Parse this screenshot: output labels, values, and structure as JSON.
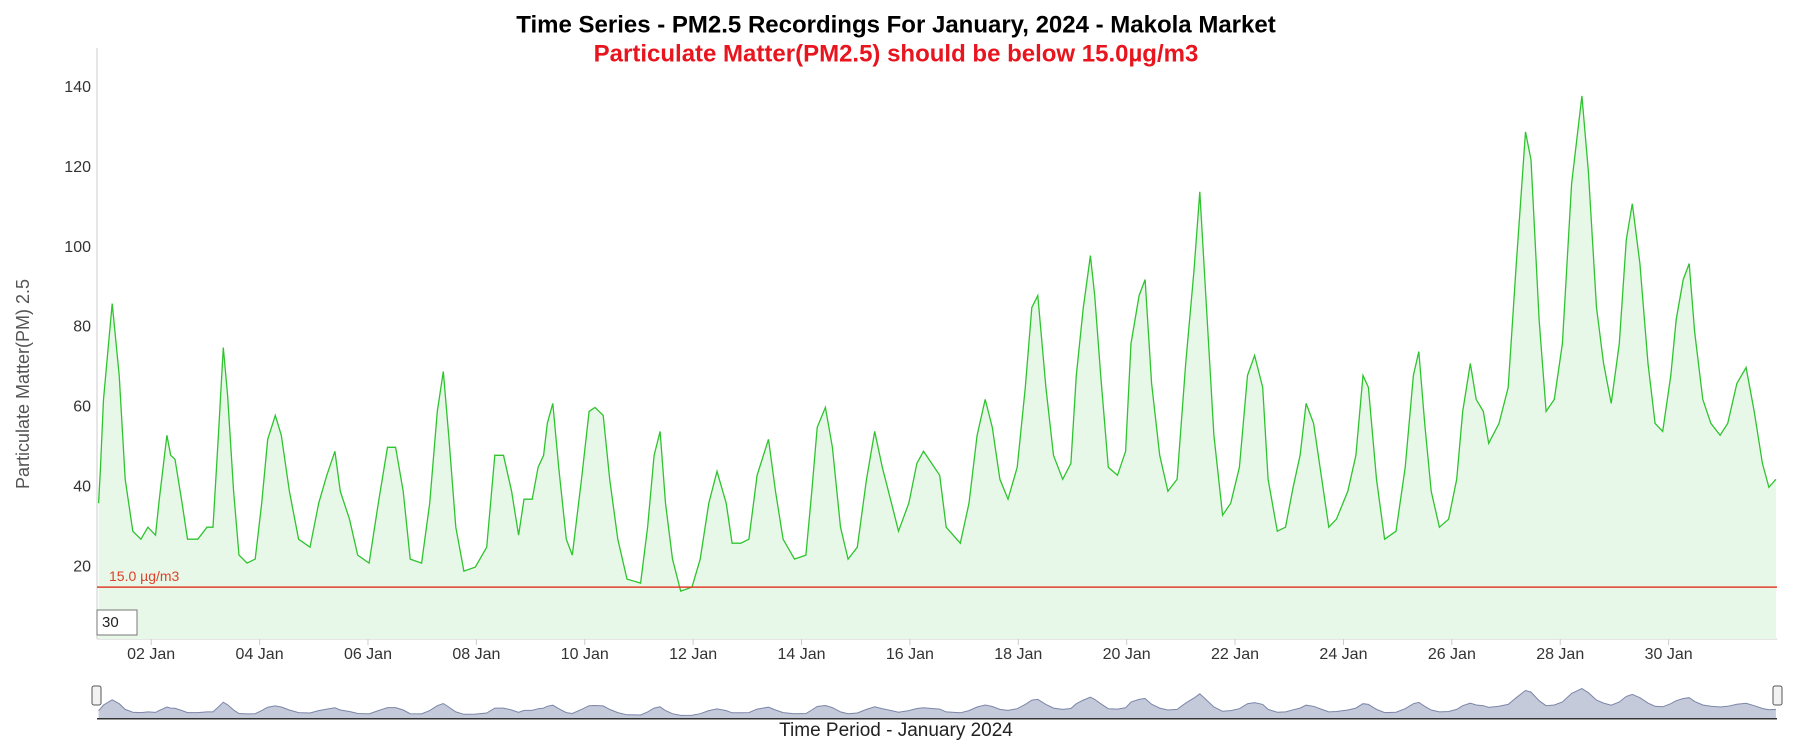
{
  "chart_data": {
    "type": "line",
    "title": "Time Series - PM2.5 Recordings For January, 2024 - Makola Market",
    "subtitle": "Particulate Matter(PM2.5) should be below 15.0µg/m3",
    "y_label": "Particulate Matter(PM) 2.5",
    "x_label": "Time Period - January 2024",
    "range_input": "30",
    "threshold": 15,
    "threshold_label": "15.0 µg/m3",
    "threshold_color": "#e0402a",
    "xlim": [
      1,
      32
    ],
    "ylim": [
      2,
      150
    ],
    "yticks": [
      20,
      40,
      60,
      80,
      100,
      120,
      140
    ],
    "xticks": [
      {
        "value": 2,
        "label": "02 Jan"
      },
      {
        "value": 4,
        "label": "04 Jan"
      },
      {
        "value": 6,
        "label": "06 Jan"
      },
      {
        "value": 8,
        "label": "08 Jan"
      },
      {
        "value": 10,
        "label": "10 Jan"
      },
      {
        "value": 12,
        "label": "12 Jan"
      },
      {
        "value": 14,
        "label": "14 Jan"
      },
      {
        "value": 16,
        "label": "16 Jan"
      },
      {
        "value": 18,
        "label": "18 Jan"
      },
      {
        "value": 20,
        "label": "20 Jan"
      },
      {
        "value": 22,
        "label": "22 Jan"
      },
      {
        "value": 24,
        "label": "24 Jan"
      },
      {
        "value": 26,
        "label": "26 Jan"
      },
      {
        "value": 28,
        "label": "28 Jan"
      },
      {
        "value": 30,
        "label": "30 Jan"
      }
    ],
    "grid": false,
    "x": [
      1.03,
      1.06,
      1.12,
      1.28,
      1.41,
      1.52,
      1.66,
      1.81,
      1.94,
      2.08,
      2.15,
      2.29,
      2.36,
      2.44,
      2.57,
      2.67,
      2.86,
      3.03,
      3.14,
      3.24,
      3.33,
      3.41,
      3.52,
      3.62,
      3.77,
      3.92,
      4.04,
      4.15,
      4.29,
      4.4,
      4.55,
      4.72,
      4.93,
      5.09,
      5.24,
      5.39,
      5.49,
      5.66,
      5.81,
      6.02,
      6.19,
      6.36,
      6.51,
      6.65,
      6.78,
      6.99,
      7.14,
      7.28,
      7.39,
      7.49,
      7.62,
      7.77,
      7.98,
      8.19,
      8.34,
      8.5,
      8.65,
      8.78,
      8.88,
      9.03,
      9.14,
      9.24,
      9.31,
      9.41,
      9.52,
      9.66,
      9.77,
      9.94,
      10.08,
      10.19,
      10.34,
      10.46,
      10.61,
      10.78,
      11.03,
      11.16,
      11.28,
      11.39,
      11.49,
      11.62,
      11.77,
      11.98,
      12.13,
      12.29,
      12.44,
      12.61,
      12.72,
      12.88,
      13.03,
      13.18,
      13.39,
      13.52,
      13.66,
      13.87,
      14.08,
      14.19,
      14.29,
      14.44,
      14.57,
      14.72,
      14.86,
      15.03,
      15.2,
      15.35,
      15.49,
      15.66,
      15.79,
      15.98,
      16.13,
      16.25,
      16.4,
      16.55,
      16.67,
      16.93,
      17.09,
      17.24,
      17.39,
      17.52,
      17.66,
      17.81,
      17.98,
      18.13,
      18.25,
      18.36,
      18.51,
      18.65,
      18.82,
      18.97,
      19.07,
      19.2,
      19.33,
      19.41,
      19.52,
      19.66,
      19.83,
      19.98,
      20.08,
      20.23,
      20.34,
      20.46,
      20.61,
      20.76,
      20.93,
      21.09,
      21.24,
      21.35,
      21.46,
      21.61,
      21.77,
      21.92,
      22.08,
      22.23,
      22.36,
      22.51,
      22.61,
      22.78,
      22.93,
      23.07,
      23.2,
      23.31,
      23.45,
      23.6,
      23.73,
      23.87,
      24.08,
      24.23,
      24.36,
      24.46,
      24.61,
      24.76,
      24.97,
      25.14,
      25.29,
      25.39,
      25.5,
      25.62,
      25.77,
      25.94,
      26.09,
      26.2,
      26.34,
      26.45,
      26.58,
      26.68,
      26.87,
      27.04,
      27.19,
      27.36,
      27.46,
      27.61,
      27.74,
      27.89,
      28.04,
      28.21,
      28.4,
      28.52,
      28.67,
      28.8,
      28.94,
      29.09,
      29.22,
      29.33,
      29.47,
      29.62,
      29.75,
      29.89,
      30.04,
      30.14,
      30.27,
      30.38,
      30.48,
      30.63,
      30.78,
      30.95,
      31.09,
      31.26,
      31.43,
      31.58,
      31.73,
      31.85,
      31.98
    ],
    "series": [
      {
        "name": "PM2.5",
        "color": "#2ec42e",
        "fill": "#e8f8e8",
        "values": [
          36,
          44,
          62,
          86,
          68,
          42,
          29,
          27,
          30,
          28,
          37,
          53,
          48,
          47,
          36,
          27,
          27,
          30,
          30,
          53,
          75,
          63,
          39,
          23,
          21,
          22,
          36,
          52,
          58,
          53,
          39,
          27,
          25,
          36,
          43,
          49,
          39,
          32,
          23,
          21,
          36,
          50,
          50,
          39,
          22,
          21,
          36,
          59,
          69,
          53,
          30,
          19,
          20,
          25,
          48,
          48,
          39,
          28,
          37,
          37,
          45,
          48,
          56,
          61,
          45,
          27,
          23,
          42,
          59,
          60,
          58,
          42,
          27,
          17,
          16,
          30,
          48,
          54,
          36,
          22,
          14,
          15,
          22,
          36,
          44,
          36,
          26,
          26,
          27,
          43,
          52,
          39,
          27,
          22,
          23,
          39,
          55,
          60,
          50,
          30,
          22,
          25,
          42,
          54,
          45,
          36,
          29,
          36,
          46,
          49,
          46,
          43,
          30,
          26,
          36,
          53,
          62,
          55,
          42,
          37,
          45,
          65,
          85,
          88,
          65,
          48,
          42,
          46,
          68,
          85,
          98,
          88,
          68,
          45,
          43,
          49,
          76,
          88,
          92,
          66,
          48,
          39,
          42,
          71,
          94,
          114,
          88,
          53,
          33,
          36,
          45,
          68,
          73,
          65,
          42,
          29,
          30,
          40,
          48,
          61,
          56,
          42,
          30,
          32,
          39,
          48,
          68,
          65,
          42,
          27,
          29,
          45,
          68,
          74,
          56,
          39,
          30,
          32,
          42,
          59,
          71,
          62,
          59,
          51,
          56,
          65,
          96,
          129,
          122,
          82,
          59,
          62,
          76,
          116,
          138,
          119,
          85,
          71,
          61,
          76,
          102,
          111,
          96,
          71,
          56,
          54,
          68,
          82,
          92,
          96,
          79,
          62,
          56,
          53,
          56,
          66,
          70,
          59,
          46,
          40,
          42
        ]
      }
    ]
  }
}
